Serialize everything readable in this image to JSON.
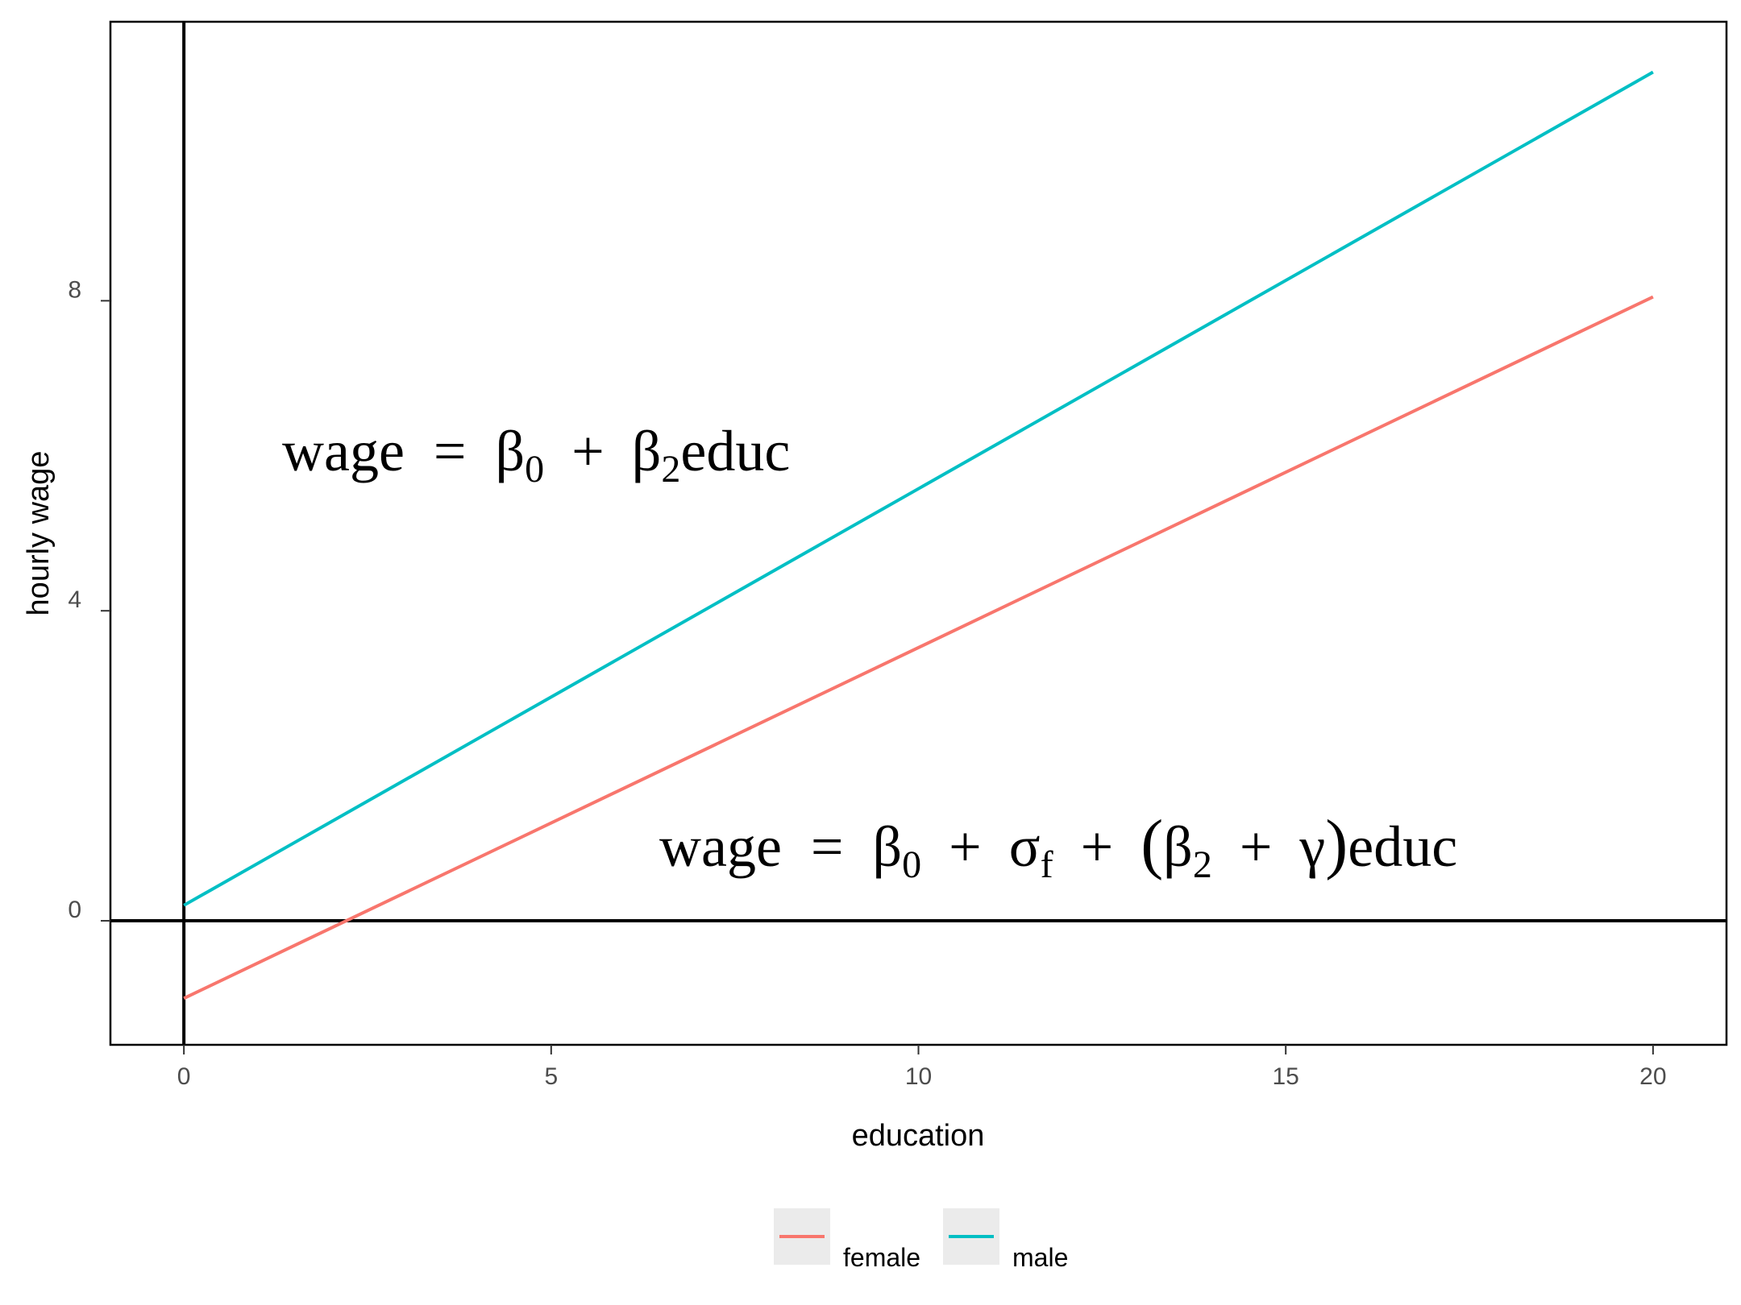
{
  "chart_data": {
    "type": "line",
    "xlabel": "education",
    "ylabel": "hourly wage",
    "xlim": [
      -1,
      21
    ],
    "ylim": [
      -1.6,
      11.6
    ],
    "x_ticks": [
      0,
      5,
      10,
      15,
      20
    ],
    "y_ticks": [
      0,
      4,
      8
    ],
    "grid": false,
    "reference_lines": {
      "x": 0,
      "y": 0
    },
    "series": [
      {
        "name": "female",
        "color": "#F8766D",
        "x": [
          0,
          20
        ],
        "y": [
          -1.0,
          8.05
        ]
      },
      {
        "name": "male",
        "color": "#00BFC4",
        "x": [
          0,
          20
        ],
        "y": [
          0.2,
          10.95
        ]
      }
    ],
    "legend": {
      "position": "bottom"
    },
    "annotations": [
      {
        "key": "male_eq",
        "x": 1.4,
        "y": 6.0,
        "text": "wage = β0 + β2educ"
      },
      {
        "key": "female_eq",
        "x": 6.5,
        "y": 0.95,
        "text": "wage = β0 + σf + (β2 + γ)educ"
      }
    ]
  },
  "equations": {
    "male": {
      "wage": "wage",
      "eq": "=",
      "beta": "β",
      "sub0": "0",
      "plus": "+",
      "sub2": "2",
      "educ": "educ"
    },
    "female": {
      "wage": "wage",
      "eq": "=",
      "beta": "β",
      "sub0": "0",
      "plus": "+",
      "sigma": "σ",
      "subf": "f",
      "lparen": "(",
      "sub2": "2",
      "gamma": "γ",
      "rparen": ")",
      "educ": "educ"
    }
  }
}
